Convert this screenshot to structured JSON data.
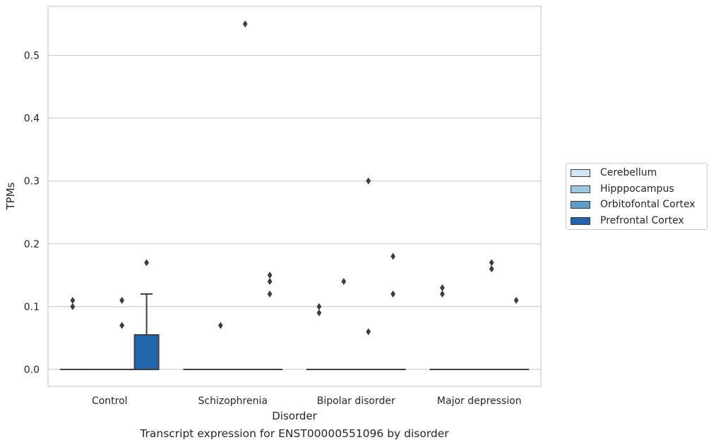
{
  "chart_data": {
    "type": "box",
    "caption": "Transcript expression for ENST00000551096 by disorder",
    "xlabel": "Disorder",
    "ylabel": "TPMs",
    "ylim": [
      -0.027,
      0.578
    ],
    "yticks": [
      0.0,
      0.1,
      0.2,
      0.3,
      0.4,
      0.5
    ],
    "ytick_labels": [
      "0.0",
      "0.1",
      "0.2",
      "0.3",
      "0.4",
      "0.5"
    ],
    "categories": [
      "Control",
      "Schizophrenia",
      "Bipolar disorder",
      "Major depression"
    ],
    "grid": "horizontal",
    "legend_position": "right",
    "series": [
      {
        "name": "Cerebellum",
        "color": "#d3e4f3",
        "boxes": [
          {
            "q1": 0,
            "median": 0,
            "q3": 0,
            "whisker_low": 0,
            "whisker_high": 0,
            "outliers": [
              0.1,
              0.11
            ]
          },
          {
            "q1": 0,
            "median": 0,
            "q3": 0,
            "whisker_low": 0,
            "whisker_high": 0,
            "outliers": []
          },
          {
            "q1": 0,
            "median": 0,
            "q3": 0,
            "whisker_low": 0,
            "whisker_high": 0,
            "outliers": [
              0.09,
              0.1
            ]
          },
          {
            "q1": 0,
            "median": 0,
            "q3": 0,
            "whisker_low": 0,
            "whisker_high": 0,
            "outliers": [
              0.12,
              0.13
            ]
          }
        ]
      },
      {
        "name": "Hipppocampus",
        "color": "#9ac8e0",
        "boxes": [
          {
            "q1": 0,
            "median": 0,
            "q3": 0,
            "whisker_low": 0,
            "whisker_high": 0,
            "outliers": []
          },
          {
            "q1": 0,
            "median": 0,
            "q3": 0,
            "whisker_low": 0,
            "whisker_high": 0,
            "outliers": [
              0.07
            ]
          },
          {
            "q1": 0,
            "median": 0,
            "q3": 0,
            "whisker_low": 0,
            "whisker_high": 0,
            "outliers": [
              0.14
            ]
          },
          {
            "q1": 0,
            "median": 0,
            "q3": 0,
            "whisker_low": 0,
            "whisker_high": 0,
            "outliers": []
          }
        ]
      },
      {
        "name": "Orbitofontal Cortex",
        "color": "#5a9ec9",
        "boxes": [
          {
            "q1": 0,
            "median": 0,
            "q3": 0,
            "whisker_low": 0,
            "whisker_high": 0,
            "outliers": [
              0.07,
              0.11
            ]
          },
          {
            "q1": 0,
            "median": 0,
            "q3": 0,
            "whisker_low": 0,
            "whisker_high": 0,
            "outliers": [
              0.55
            ]
          },
          {
            "q1": 0,
            "median": 0,
            "q3": 0,
            "whisker_low": 0,
            "whisker_high": 0,
            "outliers": [
              0.06,
              0.3
            ]
          },
          {
            "q1": 0,
            "median": 0,
            "q3": 0,
            "whisker_low": 0,
            "whisker_high": 0,
            "outliers": [
              0.16,
              0.17
            ]
          }
        ]
      },
      {
        "name": "Prefrontal Cortex",
        "color": "#2166ac",
        "boxes": [
          {
            "q1": 0,
            "median": 0,
            "q3": 0.055,
            "whisker_low": 0,
            "whisker_high": 0.12,
            "outliers": [
              0.17
            ]
          },
          {
            "q1": 0,
            "median": 0,
            "q3": 0,
            "whisker_low": 0,
            "whisker_high": 0,
            "outliers": [
              0.12,
              0.14,
              0.15
            ]
          },
          {
            "q1": 0,
            "median": 0,
            "q3": 0,
            "whisker_low": 0,
            "whisker_high": 0,
            "outliers": [
              0.12,
              0.18
            ]
          },
          {
            "q1": 0,
            "median": 0,
            "q3": 0,
            "whisker_low": 0,
            "whisker_high": 0,
            "outliers": [
              0.11
            ]
          }
        ]
      }
    ]
  }
}
